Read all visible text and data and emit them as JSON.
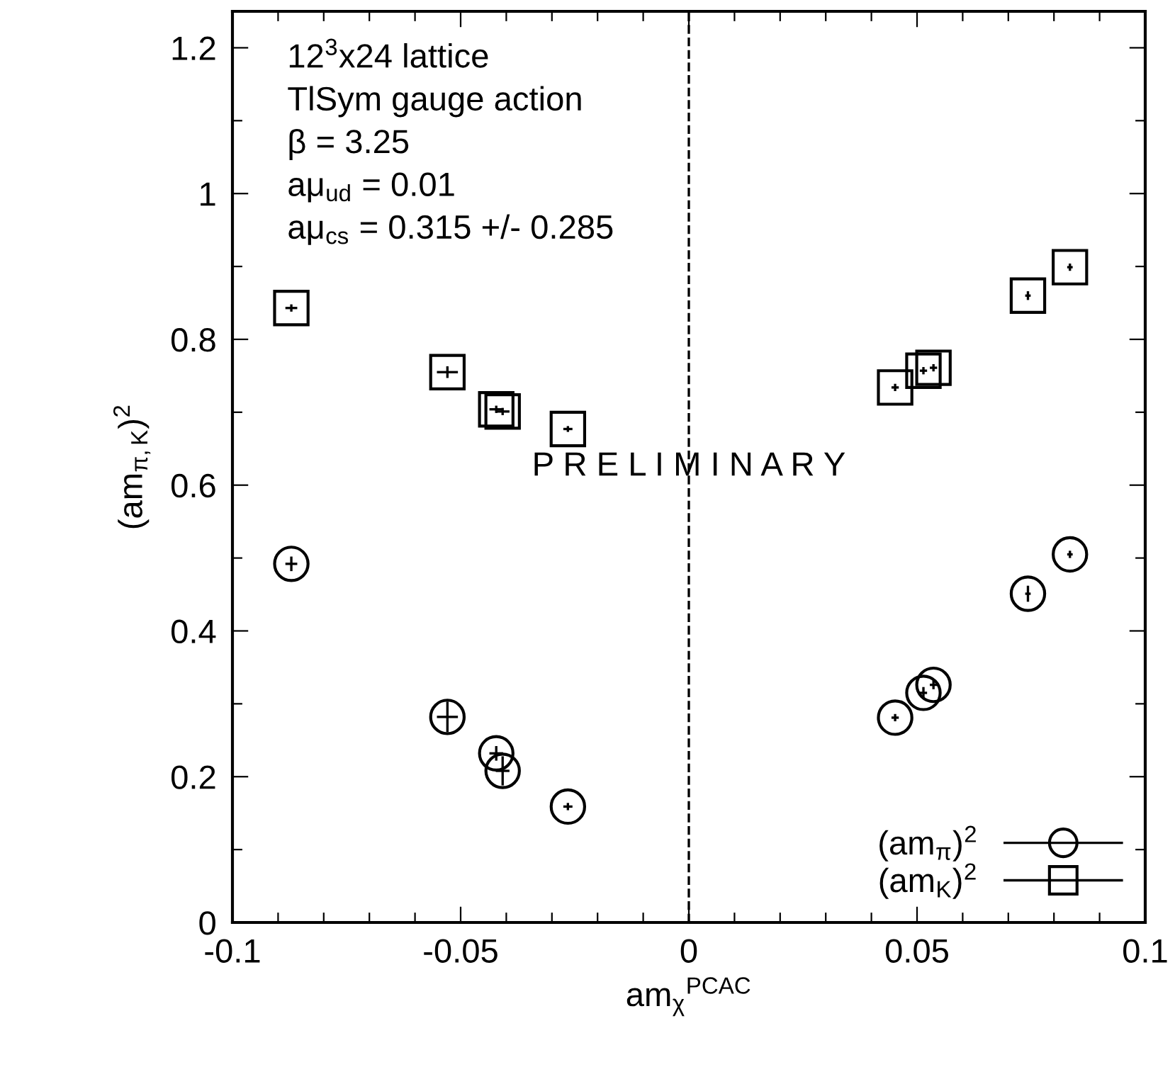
{
  "chart_data": {
    "type": "scatter",
    "xlabel": "am$_{χ}$$^{PCAC}$",
    "ylabel": "(am$_{π,K}$)$^{2}$",
    "xlim": [
      -0.1,
      0.1
    ],
    "ylim": [
      0,
      1.25
    ],
    "xticks": [
      -0.1,
      {
        "value": -0.09,
        "label": null
      },
      {
        "value": -0.08,
        "label": null
      },
      {
        "value": -0.07,
        "label": null
      },
      {
        "value": -0.06,
        "label": null
      },
      -0.05,
      {
        "value": -0.04,
        "label": null
      },
      {
        "value": -0.03,
        "label": null
      },
      {
        "value": -0.02,
        "label": null
      },
      {
        "value": -0.01,
        "label": null
      },
      0,
      {
        "value": 0.01,
        "label": null
      },
      {
        "value": 0.02,
        "label": null
      },
      {
        "value": 0.03,
        "label": null
      },
      {
        "value": 0.04,
        "label": null
      },
      0.05,
      {
        "value": 0.06,
        "label": null
      },
      {
        "value": 0.07,
        "label": null
      },
      {
        "value": 0.08,
        "label": null
      },
      {
        "value": 0.09,
        "label": null
      },
      0.1
    ],
    "yticks": [
      0,
      {
        "value": 0.1,
        "label": null
      },
      0.2,
      {
        "value": 0.3,
        "label": null
      },
      0.4,
      {
        "value": 0.5,
        "label": null
      },
      0.6,
      {
        "value": 0.7,
        "label": null
      },
      0.8,
      {
        "value": 0.9,
        "label": null
      },
      1,
      {
        "value": 1.1,
        "label": null
      },
      1.2
    ],
    "grid": false,
    "legend": "bottom right",
    "ref_lines": [
      {
        "axis": "x",
        "value": 0,
        "label": null,
        "color": "#000000",
        "line_style": "dashed"
      }
    ],
    "annotations": [
      "12$^{3}$x24 lattice",
      "TlSym gauge action",
      "β = 3.25",
      "aμ$_{ud}$ = 0.01",
      "aμ$_{cs}$ = 0.315 +/- 0.285",
      {
        "text": "P R E L I M I N A R Y",
        "x": 0,
        "y": 0.625
      }
    ],
    "series": [
      {
        "name": "(am$_{π}$)$^{2}$",
        "color": "#000000",
        "marker": "circle",
        "x": [
          -0.0871,
          -0.0529,
          -0.0422,
          -0.0408,
          -0.0265,
          0.0452,
          0.0514,
          0.0536,
          0.0743,
          0.0835
        ],
        "values": [
          0.492,
          0.282,
          0.232,
          0.208,
          0.159,
          0.281,
          0.315,
          0.326,
          0.451,
          0.505
        ],
        "xerrors": [
          0.0013,
          0.0023,
          0.0015,
          0.0015,
          0.001,
          0.0008,
          0.0008,
          0.0008,
          0.0006,
          0.0006
        ],
        "errors": [
          0.01,
          0.021,
          0.01,
          0.02,
          0.005,
          0.005,
          0.008,
          0.006,
          0.011,
          0.005
        ]
      },
      {
        "name": "(am$_{K}$)$^{2}$",
        "color": "#000000",
        "marker": "square",
        "x": [
          -0.0871,
          -0.0529,
          -0.0422,
          -0.0408,
          -0.0265,
          0.0452,
          0.0514,
          0.0536,
          0.0743,
          0.0835
        ],
        "values": [
          0.843,
          0.755,
          0.704,
          0.701,
          0.677,
          0.734,
          0.757,
          0.761,
          0.86,
          0.899
        ],
        "xerrors": [
          0.0013,
          0.0023,
          0.0015,
          0.0015,
          0.001,
          0.0008,
          0.0008,
          0.0008,
          0.0006,
          0.0006
        ],
        "errors": [
          0.005,
          0.008,
          0.005,
          0.005,
          0.004,
          0.005,
          0.005,
          0.005,
          0.006,
          0.005
        ]
      }
    ]
  }
}
